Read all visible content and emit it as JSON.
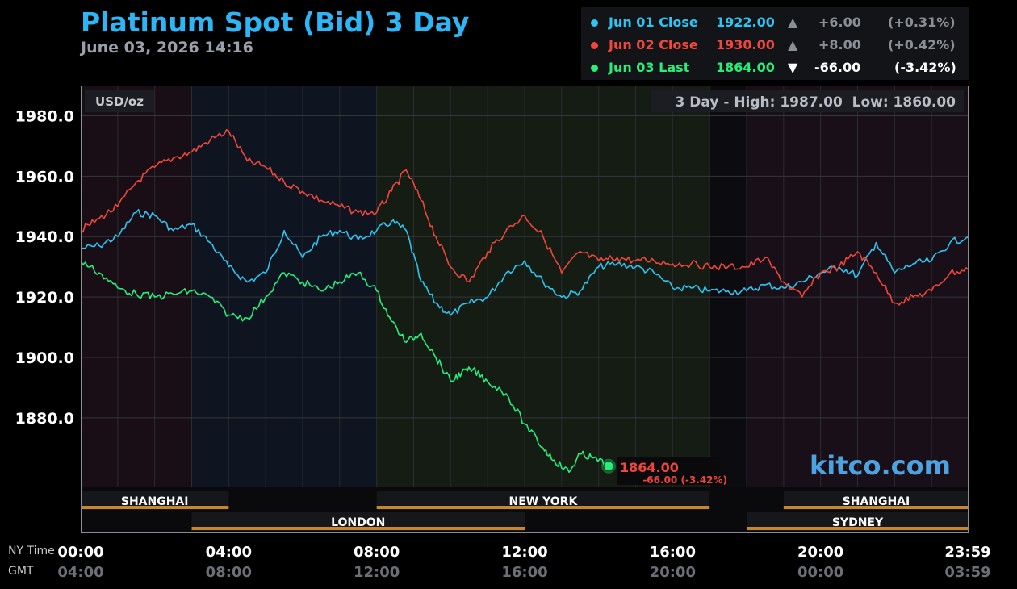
{
  "header": {
    "title": "Platinum Spot (Bid) 3 Day",
    "subtitle": "June 03, 2026 14:16"
  },
  "legend": [
    {
      "label": "Jun 01 Close",
      "value": "1922.00",
      "arrow": "▲",
      "change": "+6.00",
      "pct": "(+0.31%)",
      "color": "#2ec5f2",
      "muted": true
    },
    {
      "label": "Jun 02 Close",
      "value": "1930.00",
      "arrow": "▲",
      "change": "+8.00",
      "pct": "(+0.42%)",
      "color": "#f2463a",
      "muted": true
    },
    {
      "label": "Jun 03 Last",
      "value": "1864.00",
      "arrow": "▼",
      "change": "-66.00",
      "pct": "(-3.42%)",
      "color": "#27ef7a",
      "muted": false
    }
  ],
  "chart_data": {
    "type": "line",
    "unit_label": "USD/oz",
    "range_text": "3 Day - High: 1987.00  Low: 1860.00",
    "ylim": [
      1857,
      1990
    ],
    "yticks": [
      1880,
      1900,
      1920,
      1940,
      1960,
      1980
    ],
    "ytick_labels": [
      "1880.0",
      "1900.0",
      "1920.0",
      "1940.0",
      "1960.0",
      "1980.0"
    ],
    "xlim": [
      0,
      24
    ],
    "grid": true,
    "x_axis_primary_label": "NY Time",
    "x_axis_secondary_label": "GMT",
    "xticks": [
      {
        "x": 0,
        "ny": "00:00",
        "gmt": "04:00"
      },
      {
        "x": 4,
        "ny": "04:00",
        "gmt": "08:00"
      },
      {
        "x": 8,
        "ny": "08:00",
        "gmt": "12:00"
      },
      {
        "x": 12,
        "ny": "12:00",
        "gmt": "16:00"
      },
      {
        "x": 16,
        "ny": "16:00",
        "gmt": "20:00"
      },
      {
        "x": 20,
        "ny": "20:00",
        "gmt": "00:00"
      },
      {
        "x": 24,
        "ny": "23:59",
        "gmt": "03:59"
      }
    ],
    "sessions": [
      {
        "name": "SHANGHAI",
        "start": 0,
        "end": 4,
        "row": 1
      },
      {
        "name": "NEW YORK",
        "start": 8,
        "end": 17,
        "row": 1
      },
      {
        "name": "SHANGHAI",
        "start": 19,
        "end": 24,
        "row": 1
      },
      {
        "name": "LONDON",
        "start": 3,
        "end": 12,
        "row": 2
      },
      {
        "name": "SYDNEY",
        "start": 18,
        "end": 24,
        "row": 2
      }
    ],
    "last_point": {
      "x": 14.27,
      "y": 1864,
      "label": "1864.00",
      "sublabel": "-66.00 (-3.42%)"
    },
    "series": [
      {
        "name": "Jun 01 Close",
        "color": "#2ec5f2",
        "x": [
          0,
          0.5,
          1,
          1.5,
          2,
          2.5,
          3,
          3.5,
          4,
          4.5,
          5,
          5.5,
          6,
          6.5,
          7,
          7.5,
          8,
          8.4,
          8.8,
          9.2,
          9.6,
          10,
          10.5,
          11,
          11.5,
          12,
          12.5,
          13,
          13.5,
          14,
          14.5,
          15,
          15.5,
          16,
          16.5,
          17,
          17.5,
          18,
          18.5,
          19,
          19.5,
          20,
          20.5,
          21,
          21.5,
          22,
          22.5,
          23,
          23.5,
          24
        ],
        "y": [
          1936,
          1937,
          1940,
          1948,
          1947,
          1942,
          1944,
          1938,
          1930,
          1925,
          1928,
          1942,
          1933,
          1940,
          1942,
          1939,
          1942,
          1945,
          1942,
          1925,
          1918,
          1914,
          1918,
          1920,
          1928,
          1932,
          1925,
          1920,
          1922,
          1930,
          1931,
          1930,
          1928,
          1923,
          1923,
          1922,
          1922,
          1922,
          1924,
          1923,
          1925,
          1928,
          1930,
          1927,
          1938,
          1928,
          1931,
          1932,
          1938,
          1940
        ]
      },
      {
        "name": "Jun 02 Close",
        "color": "#f2463a",
        "x": [
          0,
          0.5,
          1,
          1.5,
          2,
          2.5,
          3,
          3.5,
          4,
          4.5,
          5,
          5.5,
          6,
          6.5,
          7,
          7.5,
          8,
          8.4,
          8.8,
          9.2,
          9.6,
          10,
          10.5,
          11,
          11.5,
          12,
          12.5,
          13,
          13.5,
          14,
          14.5,
          15,
          15.5,
          16,
          16.5,
          17,
          17.5,
          18,
          18.5,
          19,
          19.5,
          20,
          20.5,
          21,
          21.5,
          22,
          22.5,
          23,
          23.5,
          24
        ],
        "y": [
          1942,
          1946,
          1950,
          1958,
          1963,
          1966,
          1968,
          1972,
          1975,
          1965,
          1963,
          1958,
          1955,
          1952,
          1950,
          1948,
          1948,
          1955,
          1962,
          1952,
          1940,
          1930,
          1925,
          1935,
          1942,
          1947,
          1940,
          1928,
          1935,
          1932,
          1933,
          1932,
          1932,
          1931,
          1931,
          1930,
          1930,
          1930,
          1933,
          1925,
          1920,
          1928,
          1930,
          1935,
          1928,
          1918,
          1920,
          1922,
          1928,
          1929
        ]
      },
      {
        "name": "Jun 03 Last",
        "color": "#27ef7a",
        "x": [
          0,
          0.5,
          1,
          1.5,
          2,
          2.5,
          3,
          3.5,
          4,
          4.5,
          5,
          5.5,
          6,
          6.5,
          7,
          7.5,
          8,
          8.4,
          8.8,
          9.2,
          9.6,
          10,
          10.3,
          10.6,
          11,
          11.5,
          12,
          12.5,
          12.8,
          13.2,
          13.5,
          13.8,
          14.27
        ],
        "y": [
          1932,
          1928,
          1923,
          1921,
          1920,
          1921,
          1922,
          1920,
          1914,
          1913,
          1920,
          1928,
          1925,
          1922,
          1925,
          1928,
          1922,
          1912,
          1905,
          1908,
          1900,
          1892,
          1895,
          1896,
          1892,
          1888,
          1878,
          1870,
          1866,
          1862,
          1868,
          1867,
          1864
        ]
      }
    ]
  },
  "watermark": "kitco.com"
}
